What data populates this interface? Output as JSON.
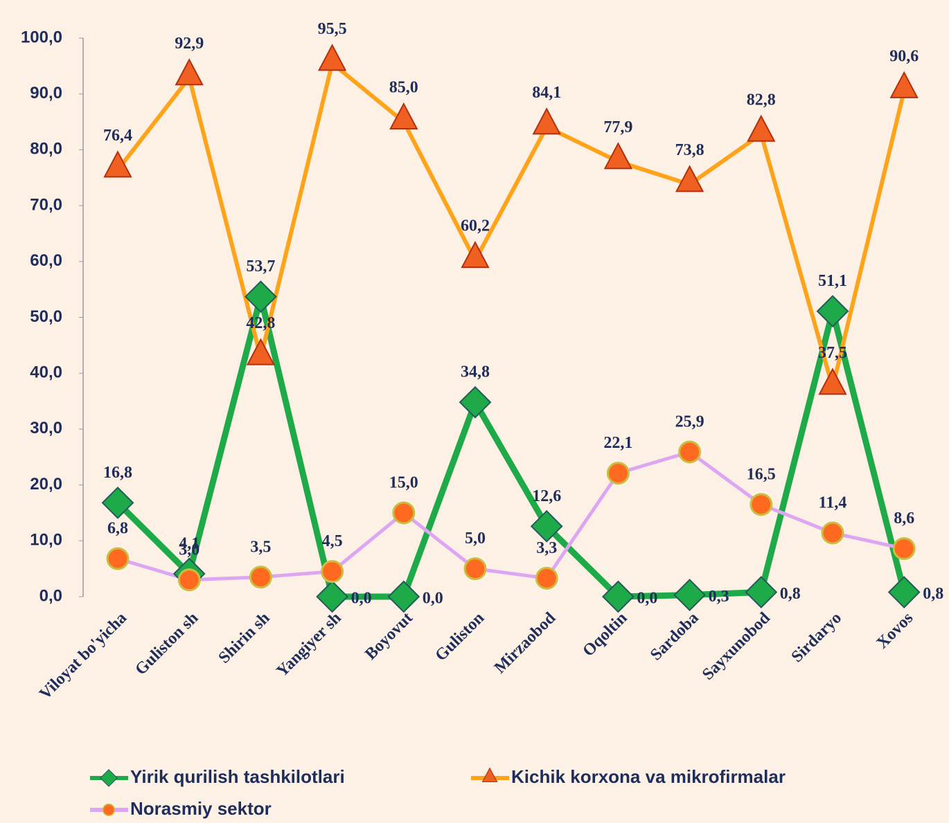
{
  "chart_data": {
    "type": "line",
    "categories": [
      "Viloyat bo'yicha",
      "Guliston sh",
      "Shirin sh",
      "Yangiyer sh",
      "Boyovut",
      "Guliston",
      "Mirzaobod",
      "Oqoltin",
      "Sardoba",
      "Sayxunobod",
      "Sirdaryo",
      "Xovos"
    ],
    "series": [
      {
        "name": "Yirik qurilish tashkilotlari",
        "color": "#1faa4a",
        "marker": "diamond",
        "values": [
          16.8,
          4.1,
          53.7,
          0.0,
          0.0,
          34.8,
          12.6,
          0.0,
          0.3,
          0.8,
          51.1,
          0.8
        ],
        "value_labels": [
          "16,8",
          "4,1",
          "53,7",
          "0,0",
          "0,0",
          "34,8",
          "12,6",
          "0,0",
          "0,3",
          "0,8",
          "51,1",
          "0,8"
        ]
      },
      {
        "name": "Kichik korxona va mikrofirmalar",
        "color": "#ffa31a",
        "marker": "triangle",
        "values": [
          76.4,
          92.9,
          42.8,
          95.5,
          85.0,
          60.2,
          84.1,
          77.9,
          73.8,
          82.8,
          37.5,
          90.6
        ],
        "value_labels": [
          "76,4",
          "92,9",
          "42,8",
          "95,5",
          "85,0",
          "60,2",
          "84,1",
          "77,9",
          "73,8",
          "82,8",
          "37,5",
          "90,6"
        ]
      },
      {
        "name": "Norasmiy sektor",
        "color": "#dda6f2",
        "marker": "circle",
        "values": [
          6.8,
          3.0,
          3.5,
          4.5,
          15.0,
          5.0,
          3.3,
          22.1,
          25.9,
          16.5,
          11.4,
          8.6
        ],
        "value_labels": [
          "6,8",
          "3,0",
          "3,5",
          "4,5",
          "15,0",
          "5,0",
          "3,3",
          "22,1",
          "25,9",
          "16,5",
          "11,4",
          "8,6"
        ]
      }
    ],
    "ylim": [
      0,
      100
    ],
    "yticks": [
      {
        "value": 0,
        "label": "0,0"
      },
      {
        "value": 10,
        "label": "10,0"
      },
      {
        "value": 20,
        "label": "20,0"
      },
      {
        "value": 30,
        "label": "30,0"
      },
      {
        "value": 40,
        "label": "40,0"
      },
      {
        "value": 50,
        "label": "50,0"
      },
      {
        "value": 60,
        "label": "60,0"
      },
      {
        "value": 70,
        "label": "70,0"
      },
      {
        "value": 80,
        "label": "80,0"
      },
      {
        "value": 90,
        "label": "90,0"
      },
      {
        "value": 100,
        "label": "100,0"
      }
    ],
    "grid": false,
    "legend": "bottom"
  }
}
